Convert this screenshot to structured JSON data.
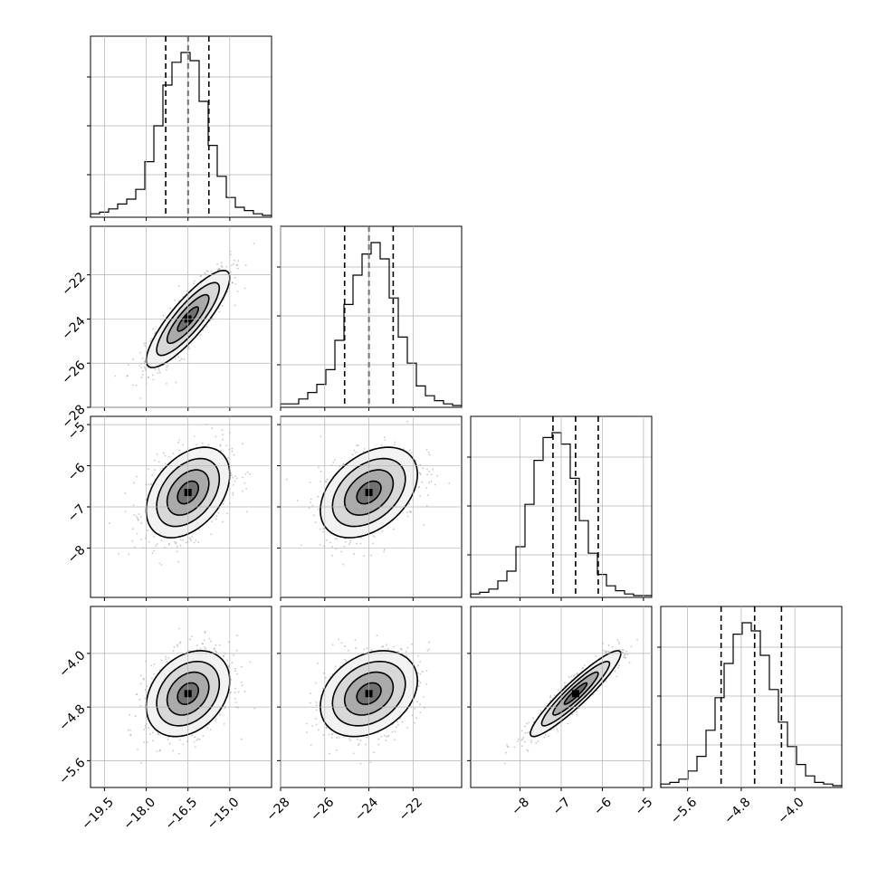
{
  "chart_data": {
    "type": "scatter",
    "layout": "corner-plot",
    "grid": true,
    "colors": {
      "line": "#000000",
      "points": "#9a9a9a",
      "grid": "#b0b0b0"
    },
    "params": [
      {
        "range": [
          -20.0,
          -13.5
        ],
        "ticks": [
          -19.5,
          -18.0,
          -16.5,
          -15.0
        ],
        "tick_labels": [
          "−19.5",
          "−18.0",
          "−16.5",
          "−15.0"
        ],
        "quantiles": [
          -17.3,
          -16.5,
          -15.75
        ],
        "hist_counts": [
          0.01,
          0.02,
          0.04,
          0.07,
          0.1,
          0.16,
          0.33,
          0.55,
          0.8,
          0.94,
          1.0,
          0.95,
          0.7,
          0.43,
          0.24,
          0.11,
          0.05,
          0.03,
          0.01,
          0.0
        ]
      },
      {
        "range": [
          -28.0,
          -19.8
        ],
        "ticks": [
          -28,
          -26,
          -24,
          -22
        ],
        "tick_labels": [
          "−28",
          "−26",
          "−24",
          "−22"
        ],
        "quantiles": [
          -25.1,
          -24.0,
          -22.9
        ],
        "hist_counts": [
          0.01,
          0.01,
          0.04,
          0.08,
          0.13,
          0.22,
          0.4,
          0.62,
          0.8,
          0.93,
          1.0,
          0.9,
          0.66,
          0.42,
          0.26,
          0.12,
          0.06,
          0.03,
          0.01,
          0.0
        ]
      },
      {
        "range": [
          -9.2,
          -4.8
        ],
        "ticks": [
          -8,
          -7,
          -6,
          -5
        ],
        "tick_labels": [
          "−8",
          "−7",
          "−6",
          "−5"
        ],
        "quantiles": [
          -7.2,
          -6.65,
          -6.1
        ],
        "hist_counts": [
          0.01,
          0.02,
          0.04,
          0.09,
          0.15,
          0.3,
          0.56,
          0.83,
          0.97,
          1.0,
          0.93,
          0.72,
          0.46,
          0.26,
          0.13,
          0.06,
          0.03,
          0.01,
          0.0,
          0.0
        ]
      },
      {
        "range": [
          -6.0,
          -3.3
        ],
        "ticks": [
          -5.6,
          -4.8,
          -4.0
        ],
        "tick_labels": [
          "−5.6",
          "−4.8",
          "−4.0"
        ],
        "quantiles": [
          -5.1,
          -4.6,
          -4.2
        ],
        "hist_counts": [
          0.01,
          0.02,
          0.04,
          0.09,
          0.18,
          0.34,
          0.54,
          0.75,
          0.93,
          1.0,
          0.95,
          0.8,
          0.59,
          0.39,
          0.24,
          0.13,
          0.06,
          0.02,
          0.01,
          0.0
        ]
      }
    ],
    "pairs": [
      {
        "row": 1,
        "col": 0,
        "mean": [
          -16.5,
          -24.0
        ],
        "sd": [
          0.75,
          1.1
        ],
        "rho": 0.85
      },
      {
        "row": 2,
        "col": 0,
        "mean": [
          -16.5,
          -6.65
        ],
        "sd": [
          0.75,
          0.55
        ],
        "rho": 0.4
      },
      {
        "row": 2,
        "col": 1,
        "mean": [
          -24.0,
          -6.65
        ],
        "sd": [
          1.1,
          0.55
        ],
        "rho": 0.4
      },
      {
        "row": 3,
        "col": 0,
        "mean": [
          -16.5,
          -4.6
        ],
        "sd": [
          0.75,
          0.32
        ],
        "rho": 0.3
      },
      {
        "row": 3,
        "col": 1,
        "mean": [
          -24.0,
          -4.6
        ],
        "sd": [
          1.1,
          0.32
        ],
        "rho": 0.3
      },
      {
        "row": 3,
        "col": 2,
        "mean": [
          -6.65,
          -4.6
        ],
        "sd": [
          0.55,
          0.32
        ],
        "rho": 0.93
      }
    ],
    "contour_levels_sigma": [
      0.5,
      1.0,
      1.5,
      2.0
    ]
  }
}
